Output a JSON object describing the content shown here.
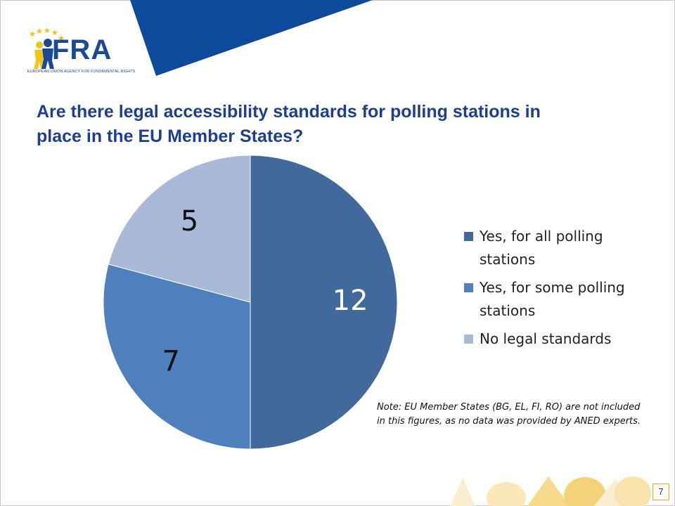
{
  "logo": {
    "text": "FRA",
    "subtitle": "EUROPEAN UNION AGENCY FOR FUNDAMENTAL RIGHTS"
  },
  "title": "Are there legal accessibility standards for polling stations in place in the EU Member States?",
  "colors": {
    "brand_blue": "#1a4a96",
    "title_blue": "#1d3f91",
    "star_yellow": "#f0c419",
    "accent_orange": "#e8a81e"
  },
  "chart_data": {
    "type": "pie",
    "title": "",
    "slices": [
      {
        "label": "Yes, for all polling stations",
        "value": 12,
        "color": "#41699c"
      },
      {
        "label": "Yes, for some polling stations",
        "value": 7,
        "color": "#4f80be"
      },
      {
        "label": "No legal standards",
        "value": 5,
        "color": "#a9bad9"
      }
    ],
    "legend_position": "right",
    "data_labels": true
  },
  "note": "Note: EU Member States (BG, EL, FI, RO) are not included in this figures, as no data was provided by ANED experts.",
  "page_number": "7"
}
